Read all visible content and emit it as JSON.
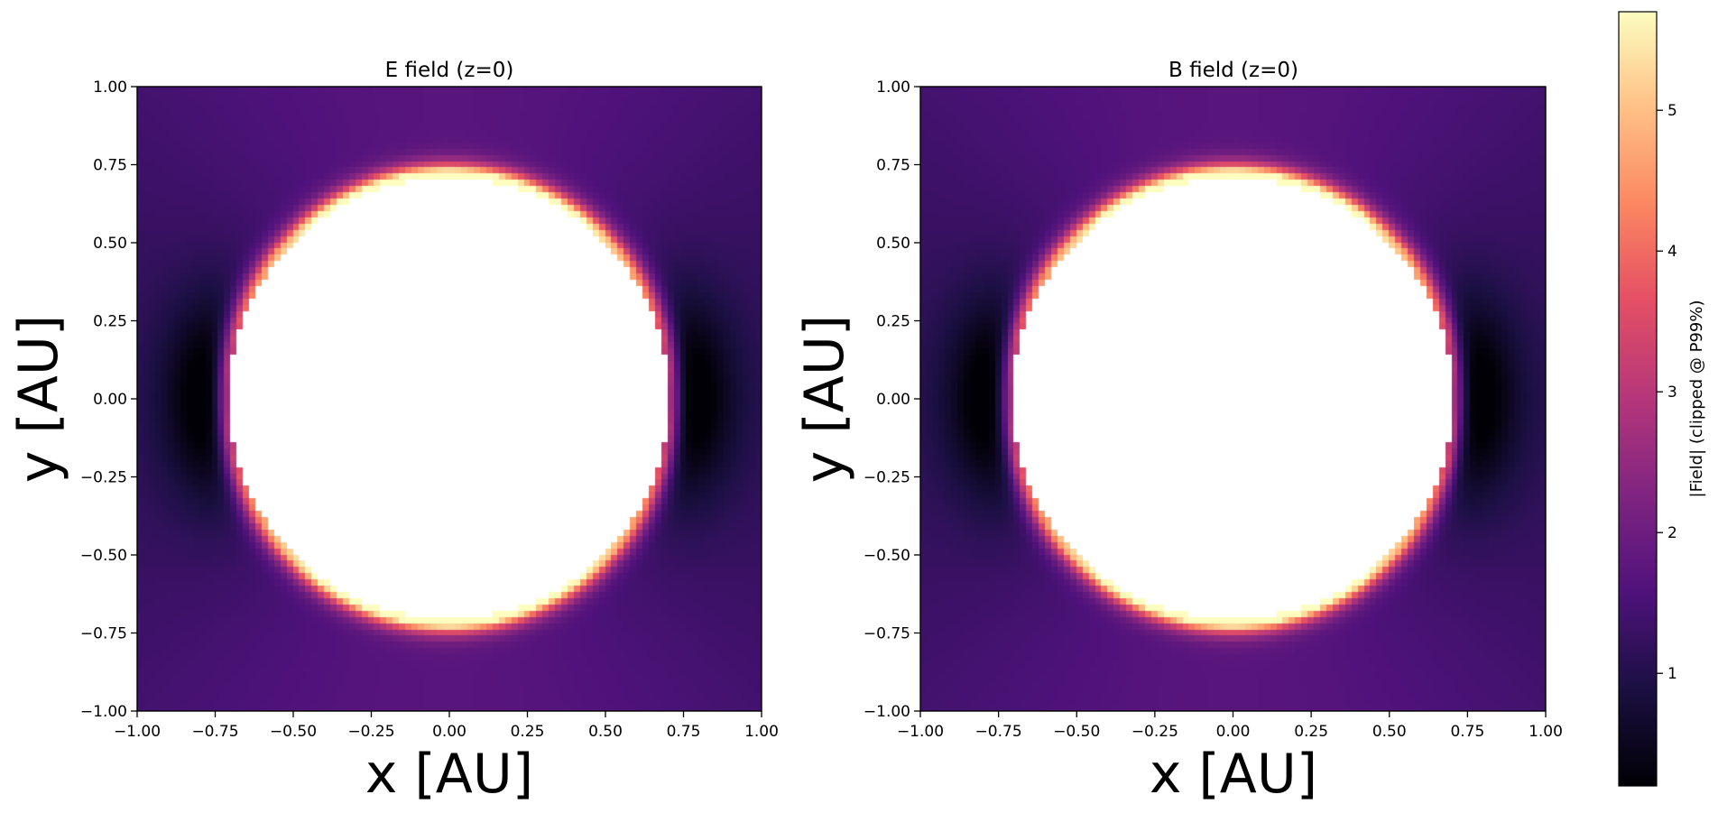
{
  "chart_data": {
    "type": "heatmap",
    "colormap": "magma",
    "grid_resolution": 100,
    "mask": "white filled disk at center, radius ≈ 0.71 AU (values above clip shown as masked/white)",
    "panels": [
      {
        "title": "E field (z=0)",
        "xlabel": "x [AU]",
        "ylabel": "y [AU]",
        "xlim": [
          -1.0,
          1.0
        ],
        "ylim": [
          -1.0,
          1.0
        ],
        "xticks": [
          "−1.00",
          "−0.75",
          "−0.50",
          "−0.25",
          "0.00",
          "0.25",
          "0.50",
          "0.75",
          "1.00"
        ],
        "yticks": [
          "−1.00",
          "−0.75",
          "−0.50",
          "−0.25",
          "0.00",
          "0.25",
          "0.50",
          "0.75",
          "1.00"
        ],
        "field_pattern": "dipole-like: low (dark) near (±0.78, 0) on x-axis, bright ring at r≈0.72, ~1.5 at top/bottom outer region"
      },
      {
        "title": "B field (z=0)",
        "xlabel": "x [AU]",
        "ylabel": "y [AU]",
        "xlim": [
          -1.0,
          1.0
        ],
        "ylim": [
          -1.0,
          1.0
        ],
        "xticks": [
          "−1.00",
          "−0.75",
          "−0.50",
          "−0.25",
          "0.00",
          "0.25",
          "0.50",
          "0.75",
          "1.00"
        ],
        "yticks": [
          "−1.00",
          "−0.75",
          "−0.50",
          "−0.25",
          "0.00",
          "0.25",
          "0.50",
          "0.75",
          "1.00"
        ],
        "field_pattern": "same as E field panel"
      }
    ],
    "colorbar": {
      "label": "|Field| (clipped @ P99%)",
      "range": [
        0.2,
        5.7
      ],
      "ticks": [
        1,
        2,
        3,
        4,
        5
      ],
      "tick_labels": [
        "1",
        "2",
        "3",
        "4",
        "5"
      ]
    }
  }
}
